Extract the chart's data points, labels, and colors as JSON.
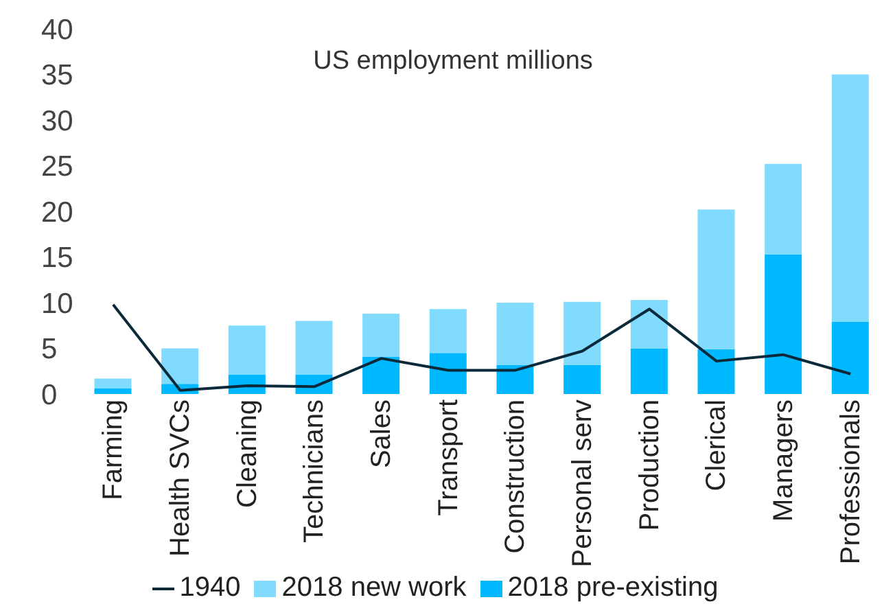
{
  "chart_data": {
    "type": "bar",
    "title": "US employment millions",
    "stacked": true,
    "categories": [
      "Farming",
      "Health SVCs",
      "Cleaning",
      "Technicians",
      "Sales",
      "Transport",
      "Construction",
      "Personal serv",
      "Production",
      "Clerical",
      "Managers",
      "Professionals"
    ],
    "series": [
      {
        "name": "2018 pre-existing",
        "color": "#00b8ff",
        "values": [
          0.6,
          1.1,
          2.1,
          2.1,
          4.1,
          4.5,
          3.2,
          3.2,
          5.0,
          4.9,
          15.3,
          7.9
        ]
      },
      {
        "name": "2018 new work",
        "color": "#80dbff",
        "values": [
          1.1,
          3.9,
          5.4,
          5.9,
          4.7,
          4.8,
          6.8,
          6.9,
          5.3,
          15.3,
          9.9,
          27.1
        ]
      },
      {
        "name": "1940",
        "type": "line",
        "color": "#0a2a3a",
        "values": [
          9.8,
          0.4,
          0.9,
          0.8,
          3.9,
          2.6,
          2.6,
          4.7,
          9.3,
          3.6,
          4.3,
          2.2
        ]
      }
    ],
    "ylim": [
      0,
      40
    ],
    "yticks": [
      0,
      5,
      10,
      15,
      20,
      25,
      30,
      35,
      40
    ],
    "grid": false,
    "legend": "bottom",
    "marker": "none"
  }
}
